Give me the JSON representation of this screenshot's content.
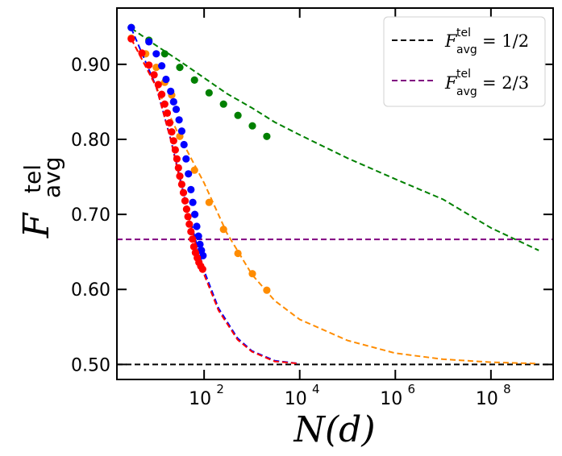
{
  "chart_data": {
    "type": "line",
    "xlabel": "N(d)",
    "ylabel_main": "F",
    "ylabel_sup": "tel",
    "ylabel_sub": "avg",
    "x_scale": "log",
    "xlim": [
      1.5,
      2000000000.0
    ],
    "ylim": [
      0.48,
      0.975
    ],
    "x_ticks": [
      {
        "value": 100,
        "base": "10",
        "exp": "2"
      },
      {
        "value": 10000,
        "base": "10",
        "exp": "4"
      },
      {
        "value": 1000000,
        "base": "10",
        "exp": "6"
      },
      {
        "value": 100000000,
        "base": "10",
        "exp": "8"
      }
    ],
    "y_ticks": [
      "0.50",
      "0.60",
      "0.70",
      "0.80",
      "0.90"
    ],
    "grid": false,
    "legend_position": "top-right",
    "legend": [
      {
        "label": "= 1/2",
        "color": "#000000"
      },
      {
        "label": "= 2/3",
        "color": "#800080"
      }
    ],
    "hlines": [
      {
        "y": 0.5,
        "color": "#000000"
      },
      {
        "y": 0.6667,
        "color": "#800080"
      }
    ],
    "series": [
      {
        "color": "#008000",
        "curve": [
          [
            3,
            0.948
          ],
          [
            10,
            0.925
          ],
          [
            30,
            0.905
          ],
          [
            100,
            0.882
          ],
          [
            300,
            0.861
          ],
          [
            1000,
            0.842
          ],
          [
            3000,
            0.823
          ],
          [
            10000,
            0.806
          ],
          [
            100000,
            0.775
          ],
          [
            1000000,
            0.747
          ],
          [
            10000000,
            0.72
          ],
          [
            100000000,
            0.682
          ],
          [
            1000000000,
            0.652
          ]
        ],
        "points": [
          [
            3,
            0.949
          ],
          [
            7,
            0.932
          ],
          [
            15,
            0.914
          ],
          [
            31,
            0.896
          ],
          [
            63,
            0.879
          ],
          [
            127,
            0.862
          ],
          [
            255,
            0.847
          ],
          [
            511,
            0.832
          ],
          [
            1023,
            0.818
          ],
          [
            2047,
            0.804
          ]
        ]
      },
      {
        "color": "#ff8c00",
        "curve": [
          [
            3,
            0.934
          ],
          [
            10,
            0.87
          ],
          [
            30,
            0.805
          ],
          [
            100,
            0.742
          ],
          [
            300,
            0.675
          ],
          [
            1000,
            0.62
          ],
          [
            3000,
            0.585
          ],
          [
            10000,
            0.56
          ],
          [
            100000,
            0.532
          ],
          [
            1000000,
            0.515
          ],
          [
            10000000,
            0.507
          ],
          [
            100000000,
            0.503
          ],
          [
            1000000000,
            0.501
          ]
        ],
        "points": [
          [
            3,
            0.935
          ],
          [
            6,
            0.914
          ],
          [
            10,
            0.896
          ],
          [
            15,
            0.876
          ],
          [
            21,
            0.859
          ],
          [
            31,
            0.804
          ],
          [
            63,
            0.759
          ],
          [
            127,
            0.716
          ],
          [
            255,
            0.68
          ],
          [
            511,
            0.648
          ],
          [
            1023,
            0.621
          ],
          [
            2047,
            0.599
          ]
        ]
      },
      {
        "color": "#0000ff",
        "curve": [
          [
            3,
            0.948
          ],
          [
            10,
            0.87
          ],
          [
            20,
            0.8
          ],
          [
            40,
            0.72
          ],
          [
            70,
            0.66
          ],
          [
            100,
            0.625
          ],
          [
            200,
            0.575
          ],
          [
            500,
            0.535
          ],
          [
            1000,
            0.518
          ],
          [
            3000,
            0.505
          ],
          [
            10000,
            0.501
          ]
        ],
        "points": [
          [
            3,
            0.949
          ],
          [
            7,
            0.93
          ],
          [
            10,
            0.914
          ],
          [
            13,
            0.898
          ],
          [
            16,
            0.88
          ],
          [
            20,
            0.864
          ],
          [
            23,
            0.85
          ],
          [
            26,
            0.84
          ],
          [
            30,
            0.826
          ],
          [
            34,
            0.811
          ],
          [
            38,
            0.793
          ],
          [
            42,
            0.774
          ],
          [
            47,
            0.754
          ],
          [
            53,
            0.733
          ],
          [
            58,
            0.716
          ],
          [
            64,
            0.7
          ],
          [
            70,
            0.684
          ],
          [
            76,
            0.671
          ],
          [
            82,
            0.66
          ],
          [
            88,
            0.652
          ],
          [
            95,
            0.645
          ]
        ]
      },
      {
        "color": "#ff0000",
        "curve": [
          [
            3,
            0.934
          ],
          [
            10,
            0.87
          ],
          [
            20,
            0.8
          ],
          [
            40,
            0.715
          ],
          [
            70,
            0.655
          ],
          [
            100,
            0.62
          ],
          [
            200,
            0.572
          ],
          [
            500,
            0.533
          ],
          [
            1000,
            0.517
          ],
          [
            3000,
            0.504
          ],
          [
            10000,
            0.501
          ]
        ],
        "points": [
          [
            3,
            0.934
          ],
          [
            5,
            0.915
          ],
          [
            7,
            0.899
          ],
          [
            9,
            0.886
          ],
          [
            11,
            0.873
          ],
          [
            13,
            0.86
          ],
          [
            15,
            0.847
          ],
          [
            17,
            0.835
          ],
          [
            19,
            0.822
          ],
          [
            21,
            0.81
          ],
          [
            23,
            0.798
          ],
          [
            25,
            0.786
          ],
          [
            27,
            0.774
          ],
          [
            29,
            0.762
          ],
          [
            31,
            0.751
          ],
          [
            34,
            0.74
          ],
          [
            37,
            0.729
          ],
          [
            40,
            0.718
          ],
          [
            43,
            0.707
          ],
          [
            46,
            0.697
          ],
          [
            49,
            0.687
          ],
          [
            53,
            0.677
          ],
          [
            57,
            0.667
          ],
          [
            61,
            0.657
          ],
          [
            66,
            0.649
          ],
          [
            72,
            0.642
          ],
          [
            78,
            0.636
          ],
          [
            85,
            0.631
          ],
          [
            93,
            0.627
          ]
        ]
      }
    ]
  }
}
